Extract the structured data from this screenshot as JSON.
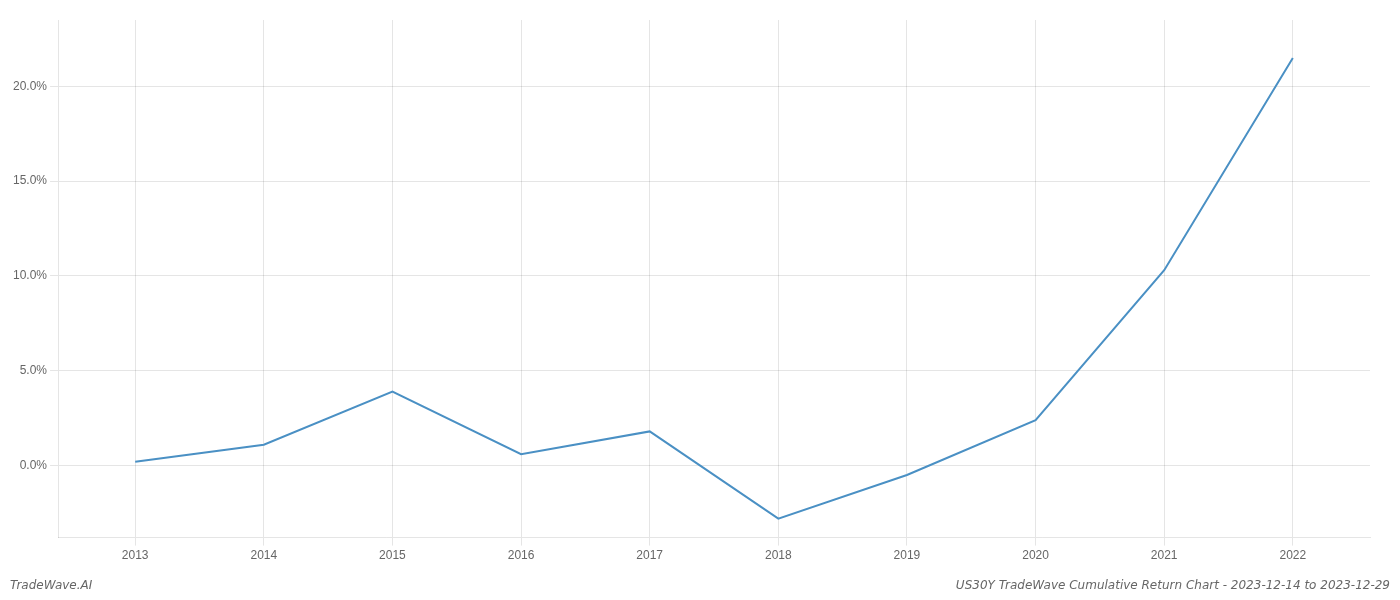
{
  "chart_data": {
    "type": "line",
    "x": [
      2013,
      2014,
      2015,
      2016,
      2017,
      2018,
      2019,
      2020,
      2021,
      2022
    ],
    "values": [
      0.002,
      0.011,
      0.039,
      0.006,
      0.018,
      -0.028,
      -0.005,
      0.024,
      0.103,
      0.215
    ],
    "color": "#4a90c4",
    "xlim": [
      2012.4,
      2022.6
    ],
    "xticks": [
      2013,
      2014,
      2015,
      2016,
      2017,
      2018,
      2019,
      2020,
      2021,
      2022
    ],
    "ylim": [
      -0.038,
      0.235
    ],
    "yticks": [
      {
        "value": 0.0,
        "label": "0.0%"
      },
      {
        "value": 0.05,
        "label": "5.0%"
      },
      {
        "value": 0.1,
        "label": "10.0%"
      },
      {
        "value": 0.15,
        "label": "15.0%"
      },
      {
        "value": 0.2,
        "label": "20.0%"
      }
    ],
    "grid": true,
    "annotations": [
      "TradeWave.AI",
      "US30Y TradeWave Cumulative Return Chart - 2023-12-14 to 2023-12-29"
    ]
  }
}
